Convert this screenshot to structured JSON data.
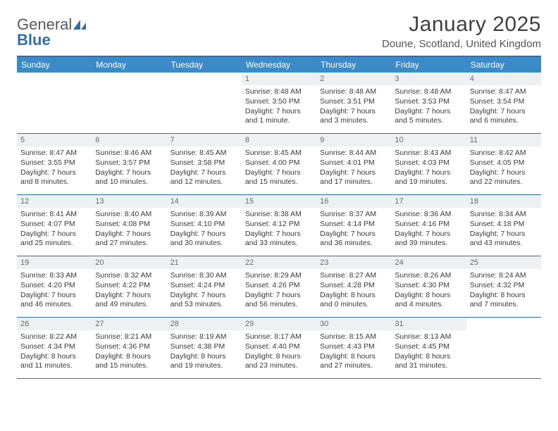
{
  "brand": {
    "word1": "General",
    "word2": "Blue"
  },
  "title": "January 2025",
  "location": "Doune, Scotland, United Kingdom",
  "colors": {
    "header_bg": "#3b8bc9",
    "header_border": "#2f6fad",
    "daynum_bg": "#eef1f3",
    "text": "#3a3a3a"
  },
  "dow": [
    "Sunday",
    "Monday",
    "Tuesday",
    "Wednesday",
    "Thursday",
    "Friday",
    "Saturday"
  ],
  "weeks": [
    [
      {
        "n": "",
        "sr": "",
        "ss": "",
        "dl": ""
      },
      {
        "n": "",
        "sr": "",
        "ss": "",
        "dl": ""
      },
      {
        "n": "",
        "sr": "",
        "ss": "",
        "dl": ""
      },
      {
        "n": "1",
        "sr": "Sunrise: 8:48 AM",
        "ss": "Sunset: 3:50 PM",
        "dl": "Daylight: 7 hours and 1 minute."
      },
      {
        "n": "2",
        "sr": "Sunrise: 8:48 AM",
        "ss": "Sunset: 3:51 PM",
        "dl": "Daylight: 7 hours and 3 minutes."
      },
      {
        "n": "3",
        "sr": "Sunrise: 8:48 AM",
        "ss": "Sunset: 3:53 PM",
        "dl": "Daylight: 7 hours and 5 minutes."
      },
      {
        "n": "4",
        "sr": "Sunrise: 8:47 AM",
        "ss": "Sunset: 3:54 PM",
        "dl": "Daylight: 7 hours and 6 minutes."
      }
    ],
    [
      {
        "n": "5",
        "sr": "Sunrise: 8:47 AM",
        "ss": "Sunset: 3:55 PM",
        "dl": "Daylight: 7 hours and 8 minutes."
      },
      {
        "n": "6",
        "sr": "Sunrise: 8:46 AM",
        "ss": "Sunset: 3:57 PM",
        "dl": "Daylight: 7 hours and 10 minutes."
      },
      {
        "n": "7",
        "sr": "Sunrise: 8:45 AM",
        "ss": "Sunset: 3:58 PM",
        "dl": "Daylight: 7 hours and 12 minutes."
      },
      {
        "n": "8",
        "sr": "Sunrise: 8:45 AM",
        "ss": "Sunset: 4:00 PM",
        "dl": "Daylight: 7 hours and 15 minutes."
      },
      {
        "n": "9",
        "sr": "Sunrise: 8:44 AM",
        "ss": "Sunset: 4:01 PM",
        "dl": "Daylight: 7 hours and 17 minutes."
      },
      {
        "n": "10",
        "sr": "Sunrise: 8:43 AM",
        "ss": "Sunset: 4:03 PM",
        "dl": "Daylight: 7 hours and 19 minutes."
      },
      {
        "n": "11",
        "sr": "Sunrise: 8:42 AM",
        "ss": "Sunset: 4:05 PM",
        "dl": "Daylight: 7 hours and 22 minutes."
      }
    ],
    [
      {
        "n": "12",
        "sr": "Sunrise: 8:41 AM",
        "ss": "Sunset: 4:07 PM",
        "dl": "Daylight: 7 hours and 25 minutes."
      },
      {
        "n": "13",
        "sr": "Sunrise: 8:40 AM",
        "ss": "Sunset: 4:08 PM",
        "dl": "Daylight: 7 hours and 27 minutes."
      },
      {
        "n": "14",
        "sr": "Sunrise: 8:39 AM",
        "ss": "Sunset: 4:10 PM",
        "dl": "Daylight: 7 hours and 30 minutes."
      },
      {
        "n": "15",
        "sr": "Sunrise: 8:38 AM",
        "ss": "Sunset: 4:12 PM",
        "dl": "Daylight: 7 hours and 33 minutes."
      },
      {
        "n": "16",
        "sr": "Sunrise: 8:37 AM",
        "ss": "Sunset: 4:14 PM",
        "dl": "Daylight: 7 hours and 36 minutes."
      },
      {
        "n": "17",
        "sr": "Sunrise: 8:36 AM",
        "ss": "Sunset: 4:16 PM",
        "dl": "Daylight: 7 hours and 39 minutes."
      },
      {
        "n": "18",
        "sr": "Sunrise: 8:34 AM",
        "ss": "Sunset: 4:18 PM",
        "dl": "Daylight: 7 hours and 43 minutes."
      }
    ],
    [
      {
        "n": "19",
        "sr": "Sunrise: 8:33 AM",
        "ss": "Sunset: 4:20 PM",
        "dl": "Daylight: 7 hours and 46 minutes."
      },
      {
        "n": "20",
        "sr": "Sunrise: 8:32 AM",
        "ss": "Sunset: 4:22 PM",
        "dl": "Daylight: 7 hours and 49 minutes."
      },
      {
        "n": "21",
        "sr": "Sunrise: 8:30 AM",
        "ss": "Sunset: 4:24 PM",
        "dl": "Daylight: 7 hours and 53 minutes."
      },
      {
        "n": "22",
        "sr": "Sunrise: 8:29 AM",
        "ss": "Sunset: 4:26 PM",
        "dl": "Daylight: 7 hours and 56 minutes."
      },
      {
        "n": "23",
        "sr": "Sunrise: 8:27 AM",
        "ss": "Sunset: 4:28 PM",
        "dl": "Daylight: 8 hours and 0 minutes."
      },
      {
        "n": "24",
        "sr": "Sunrise: 8:26 AM",
        "ss": "Sunset: 4:30 PM",
        "dl": "Daylight: 8 hours and 4 minutes."
      },
      {
        "n": "25",
        "sr": "Sunrise: 8:24 AM",
        "ss": "Sunset: 4:32 PM",
        "dl": "Daylight: 8 hours and 7 minutes."
      }
    ],
    [
      {
        "n": "26",
        "sr": "Sunrise: 8:22 AM",
        "ss": "Sunset: 4:34 PM",
        "dl": "Daylight: 8 hours and 11 minutes."
      },
      {
        "n": "27",
        "sr": "Sunrise: 8:21 AM",
        "ss": "Sunset: 4:36 PM",
        "dl": "Daylight: 8 hours and 15 minutes."
      },
      {
        "n": "28",
        "sr": "Sunrise: 8:19 AM",
        "ss": "Sunset: 4:38 PM",
        "dl": "Daylight: 8 hours and 19 minutes."
      },
      {
        "n": "29",
        "sr": "Sunrise: 8:17 AM",
        "ss": "Sunset: 4:40 PM",
        "dl": "Daylight: 8 hours and 23 minutes."
      },
      {
        "n": "30",
        "sr": "Sunrise: 8:15 AM",
        "ss": "Sunset: 4:43 PM",
        "dl": "Daylight: 8 hours and 27 minutes."
      },
      {
        "n": "31",
        "sr": "Sunrise: 8:13 AM",
        "ss": "Sunset: 4:45 PM",
        "dl": "Daylight: 8 hours and 31 minutes."
      },
      {
        "n": "",
        "sr": "",
        "ss": "",
        "dl": ""
      }
    ]
  ]
}
